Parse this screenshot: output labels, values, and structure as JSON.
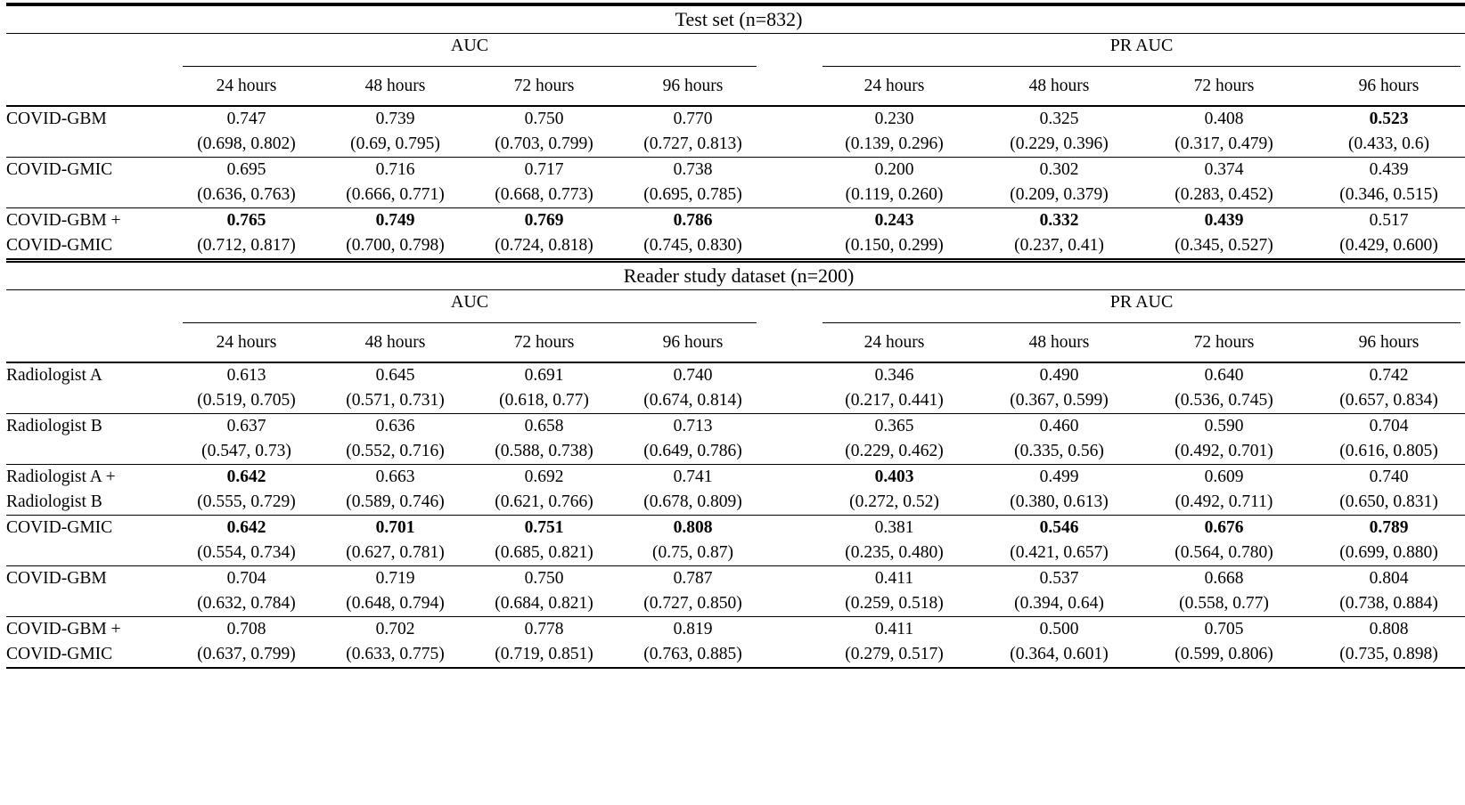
{
  "style": {
    "background": "#ffffff",
    "text_color": "#000000",
    "rule_color": "#000000"
  },
  "table": {
    "sections": [
      {
        "title": "Test set (n=832)",
        "group_headers": [
          "AUC",
          "PR AUC"
        ],
        "time_headers": [
          "24 hours",
          "48 hours",
          "72 hours",
          "96 hours"
        ],
        "rows": [
          {
            "label": "COVID-GBM",
            "auc": [
              {
                "value": "0.747",
                "ci": "(0.698, 0.802)",
                "bold": false
              },
              {
                "value": "0.739",
                "ci": "(0.69, 0.795)",
                "bold": false
              },
              {
                "value": "0.750",
                "ci": "(0.703, 0.799)",
                "bold": false
              },
              {
                "value": "0.770",
                "ci": "(0.727, 0.813)",
                "bold": false
              }
            ],
            "pr_auc": [
              {
                "value": "0.230",
                "ci": "(0.139, 0.296)",
                "bold": false
              },
              {
                "value": "0.325",
                "ci": "(0.229, 0.396)",
                "bold": false
              },
              {
                "value": "0.408",
                "ci": "(0.317, 0.479)",
                "bold": false
              },
              {
                "value": "0.523",
                "ci": "(0.433, 0.6)",
                "bold": true
              }
            ]
          },
          {
            "label": "COVID-GMIC",
            "auc": [
              {
                "value": "0.695",
                "ci": "(0.636, 0.763)",
                "bold": false
              },
              {
                "value": "0.716",
                "ci": "(0.666, 0.771)",
                "bold": false
              },
              {
                "value": "0.717",
                "ci": "(0.668, 0.773)",
                "bold": false
              },
              {
                "value": "0.738",
                "ci": "(0.695, 0.785)",
                "bold": false
              }
            ],
            "pr_auc": [
              {
                "value": "0.200",
                "ci": "(0.119, 0.260)",
                "bold": false
              },
              {
                "value": "0.302",
                "ci": "(0.209, 0.379)",
                "bold": false
              },
              {
                "value": "0.374",
                "ci": "(0.283, 0.452)",
                "bold": false
              },
              {
                "value": "0.439",
                "ci": "(0.346, 0.515)",
                "bold": false
              }
            ]
          },
          {
            "label": "COVID-GBM +\nCOVID-GMIC",
            "auc": [
              {
                "value": "0.765",
                "ci": "(0.712, 0.817)",
                "bold": true
              },
              {
                "value": "0.749",
                "ci": "(0.700, 0.798)",
                "bold": true
              },
              {
                "value": "0.769",
                "ci": "(0.724, 0.818)",
                "bold": true
              },
              {
                "value": "0.786",
                "ci": "(0.745, 0.830)",
                "bold": true
              }
            ],
            "pr_auc": [
              {
                "value": "0.243",
                "ci": "(0.150, 0.299)",
                "bold": true
              },
              {
                "value": "0.332",
                "ci": "(0.237, 0.41)",
                "bold": true
              },
              {
                "value": "0.439",
                "ci": "(0.345, 0.527)",
                "bold": true
              },
              {
                "value": "0.517",
                "ci": "(0.429, 0.600)",
                "bold": false
              }
            ]
          }
        ]
      },
      {
        "title": "Reader study dataset (n=200)",
        "group_headers": [
          "AUC",
          "PR AUC"
        ],
        "time_headers": [
          "24 hours",
          "48 hours",
          "72 hours",
          "96 hours"
        ],
        "rows": [
          {
            "label": "Radiologist A",
            "auc": [
              {
                "value": "0.613",
                "ci": "(0.519, 0.705)",
                "bold": false
              },
              {
                "value": "0.645",
                "ci": "(0.571, 0.731)",
                "bold": false
              },
              {
                "value": "0.691",
                "ci": "(0.618, 0.77)",
                "bold": false
              },
              {
                "value": "0.740",
                "ci": "(0.674, 0.814)",
                "bold": false
              }
            ],
            "pr_auc": [
              {
                "value": "0.346",
                "ci": "(0.217, 0.441)",
                "bold": false
              },
              {
                "value": "0.490",
                "ci": "(0.367, 0.599)",
                "bold": false
              },
              {
                "value": "0.640",
                "ci": "(0.536, 0.745)",
                "bold": false
              },
              {
                "value": "0.742",
                "ci": "(0.657, 0.834)",
                "bold": false
              }
            ]
          },
          {
            "label": "Radiologist B",
            "auc": [
              {
                "value": "0.637",
                "ci": "(0.547, 0.73)",
                "bold": false
              },
              {
                "value": "0.636",
                "ci": "(0.552, 0.716)",
                "bold": false
              },
              {
                "value": "0.658",
                "ci": "(0.588, 0.738)",
                "bold": false
              },
              {
                "value": "0.713",
                "ci": "(0.649, 0.786)",
                "bold": false
              }
            ],
            "pr_auc": [
              {
                "value": "0.365",
                "ci": "(0.229, 0.462)",
                "bold": false
              },
              {
                "value": "0.460",
                "ci": "(0.335, 0.56)",
                "bold": false
              },
              {
                "value": "0.590",
                "ci": "(0.492, 0.701)",
                "bold": false
              },
              {
                "value": "0.704",
                "ci": "(0.616, 0.805)",
                "bold": false
              }
            ]
          },
          {
            "label": "Radiologist A +\nRadiologist B",
            "auc": [
              {
                "value": "0.642",
                "ci": "(0.555, 0.729)",
                "bold": true
              },
              {
                "value": "0.663",
                "ci": "(0.589, 0.746)",
                "bold": false
              },
              {
                "value": "0.692",
                "ci": "(0.621, 0.766)",
                "bold": false
              },
              {
                "value": "0.741",
                "ci": "(0.678, 0.809)",
                "bold": false
              }
            ],
            "pr_auc": [
              {
                "value": "0.403",
                "ci": "(0.272, 0.52)",
                "bold": true
              },
              {
                "value": "0.499",
                "ci": "(0.380, 0.613)",
                "bold": false
              },
              {
                "value": "0.609",
                "ci": "(0.492, 0.711)",
                "bold": false
              },
              {
                "value": "0.740",
                "ci": "(0.650, 0.831)",
                "bold": false
              }
            ]
          },
          {
            "label": "COVID-GMIC",
            "auc": [
              {
                "value": "0.642",
                "ci": "(0.554, 0.734)",
                "bold": true
              },
              {
                "value": "0.701",
                "ci": "(0.627, 0.781)",
                "bold": true
              },
              {
                "value": "0.751",
                "ci": "(0.685, 0.821)",
                "bold": true
              },
              {
                "value": "0.808",
                "ci": "(0.75, 0.87)",
                "bold": true
              }
            ],
            "pr_auc": [
              {
                "value": "0.381",
                "ci": "(0.235, 0.480)",
                "bold": false
              },
              {
                "value": "0.546",
                "ci": "(0.421, 0.657)",
                "bold": true
              },
              {
                "value": "0.676",
                "ci": "(0.564, 0.780)",
                "bold": true
              },
              {
                "value": "0.789",
                "ci": "(0.699, 0.880)",
                "bold": true
              }
            ]
          },
          {
            "label": "COVID-GBM",
            "auc": [
              {
                "value": "0.704",
                "ci": "(0.632, 0.784)",
                "bold": false
              },
              {
                "value": "0.719",
                "ci": "(0.648, 0.794)",
                "bold": false
              },
              {
                "value": "0.750",
                "ci": "(0.684, 0.821)",
                "bold": false
              },
              {
                "value": "0.787",
                "ci": "(0.727, 0.850)",
                "bold": false
              }
            ],
            "pr_auc": [
              {
                "value": "0.411",
                "ci": "(0.259, 0.518)",
                "bold": false
              },
              {
                "value": "0.537",
                "ci": "(0.394, 0.64)",
                "bold": false
              },
              {
                "value": "0.668",
                "ci": "(0.558, 0.77)",
                "bold": false
              },
              {
                "value": "0.804",
                "ci": "(0.738, 0.884)",
                "bold": false
              }
            ]
          },
          {
            "label": "COVID-GBM +\nCOVID-GMIC",
            "auc": [
              {
                "value": "0.708",
                "ci": "(0.637, 0.799)",
                "bold": false
              },
              {
                "value": "0.702",
                "ci": "(0.633, 0.775)",
                "bold": false
              },
              {
                "value": "0.778",
                "ci": "(0.719, 0.851)",
                "bold": false
              },
              {
                "value": "0.819",
                "ci": "(0.763, 0.885)",
                "bold": false
              }
            ],
            "pr_auc": [
              {
                "value": "0.411",
                "ci": "(0.279, 0.517)",
                "bold": false
              },
              {
                "value": "0.500",
                "ci": "(0.364, 0.601)",
                "bold": false
              },
              {
                "value": "0.705",
                "ci": "(0.599, 0.806)",
                "bold": false
              },
              {
                "value": "0.808",
                "ci": "(0.735, 0.898)",
                "bold": false
              }
            ]
          }
        ]
      }
    ]
  }
}
